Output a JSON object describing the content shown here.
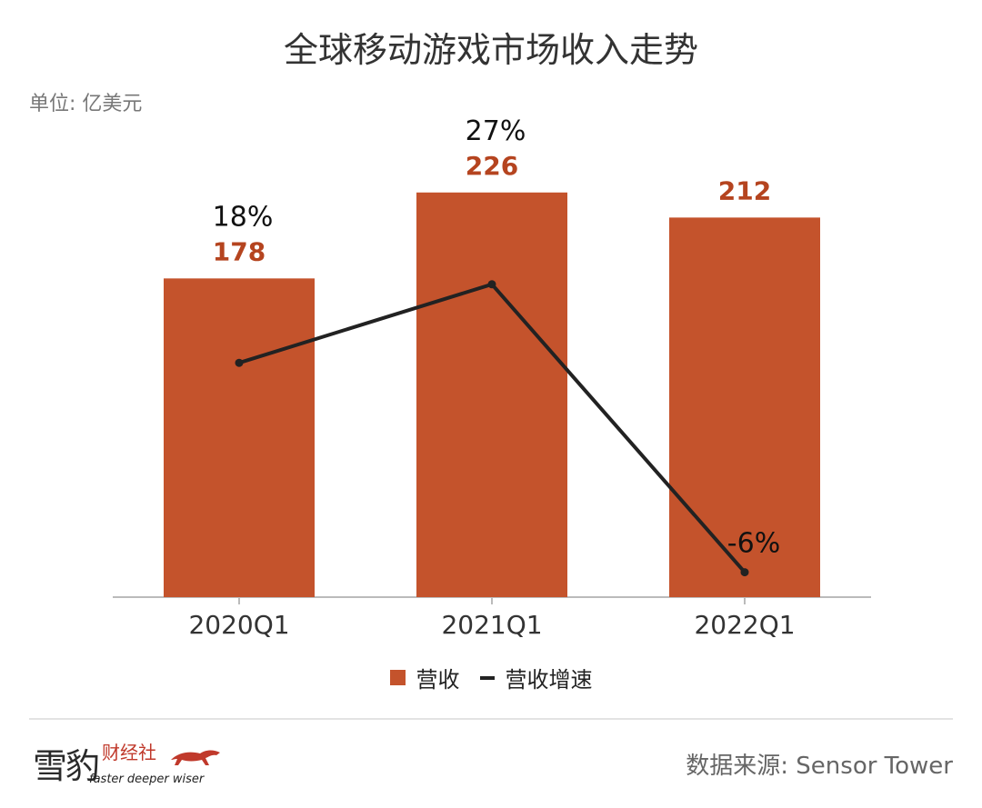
{
  "title": "全球移动游戏市场收入走势",
  "unit": "单位: 亿美元",
  "source": "数据来源: Sensor Tower",
  "logo": {
    "main": "雪豹",
    "sub": "财经社",
    "tagline": "faster deeper wiser"
  },
  "legend": {
    "bar": "营收",
    "line": "营收增速"
  },
  "colors": {
    "bar": "#c4532c",
    "line": "#222222",
    "bar_label": "#b5441f",
    "axis": "#bbbbbb"
  },
  "chart_data": {
    "type": "bar",
    "categories": [
      "2020Q1",
      "2021Q1",
      "2022Q1"
    ],
    "series": [
      {
        "name": "营收",
        "type": "bar",
        "values": [
          178,
          226,
          212
        ],
        "labels": [
          "178",
          "226",
          "212"
        ]
      },
      {
        "name": "营收增速",
        "type": "line",
        "values": [
          18,
          27,
          -6
        ],
        "labels": [
          "18%",
          "27%",
          "-6%"
        ]
      }
    ]
  }
}
